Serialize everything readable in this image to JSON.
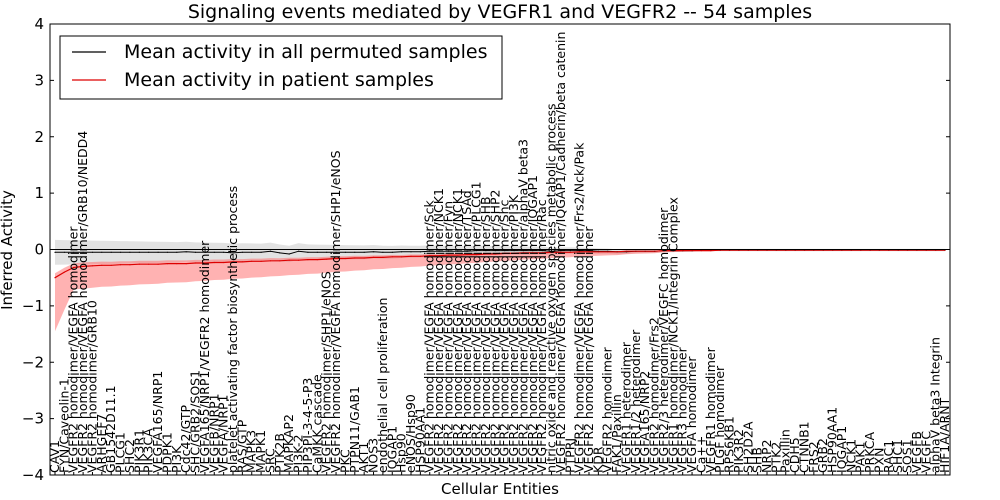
{
  "chart_data": {
    "type": "line",
    "title": "Signaling events mediated by VEGFR1 and VEGFR2 -- 54 samples",
    "xlabel": "Cellular Entities",
    "ylabel": "Inferred Activity",
    "ylim": [
      -4,
      4
    ],
    "yticks": [
      -4,
      -3,
      -2,
      -1,
      0,
      1,
      2,
      3,
      4
    ],
    "legend": {
      "position": "top-left",
      "entries": [
        {
          "label": "Mean activity in all permuted samples",
          "color": "#000000"
        },
        {
          "label": "Mean activity in patient samples",
          "color": "#ff0000"
        }
      ]
    },
    "colors": {
      "permuted_line": "#000000",
      "permuted_band": "#bfbfbf",
      "patient_line": "#dd0000",
      "patient_band": "#ff6666"
    },
    "categories": [
      "CAV1",
      "FYN/Caveolin-1",
      "VEGFR2 homodimer/VEGFA homodimer",
      "VEGFR2 homodimer/VEGFA homodimer/GRB10/NEDD4",
      "VEGFR2 homodimer/GRB10",
      "ARHGEF7",
      "GB1542D11.1",
      "PLCG1",
      "SHC2",
      "PIK3R1",
      "PIK3CA",
      "VEGFA165/NRP1",
      "PDPK1",
      "PI3K",
      "Cdc42/GTP",
      "SHC/GRB2/SOS1",
      "VEGFA165/NRP1/VEGFR2 homodimer",
      "VEGFB/NRP1",
      "VEGFA/NRP1",
      "platelet activating factor biosynthetic process",
      "RAS/GTP",
      "MAPK3",
      "MAPK1",
      "SRC",
      "PTK2B",
      "MAPKAP2",
      "PI3K-2",
      "PIP3PI-3-4-5-P3",
      "CaMKK cascade",
      "VEGFR2 homodimer/SHP1/eNOS",
      "VEGFR2 homodimer/VEGFA homodimer/SHP1/eNOS",
      "PKC",
      "PTPN11/GAB1",
      "AKT1",
      "NOS3",
      "endothelial cell proliferation",
      "IQGAP1",
      "Hsp90",
      "eNOS/Hsp90",
      "HSP90AA1",
      "VEGFR2 homodimer/VEGFA homodimer/Sck",
      "VEGFR2 homodimer/VEGFA homodimer/NCK1",
      "VEGFR2 homodimer/VEGFA homodimer/Fyn",
      "VEGFR2 homodimer/VEGFA homodimer/NCK1",
      "VEGFR2 homodimer/VEGFA homodimer/TSAd",
      "VEGFR2 homodimer/VEGFA homodimer/PLCG1",
      "VEGFR2 homodimer/VEGFA homodimer/SHB",
      "VEGFR2 homodimer/VEGFA homodimer/SHP2",
      "VEGFR2 homodimer/VEGFA homodimer/Shc",
      "VEGFR2 homodimer/VEGFA homodimer/PI3K",
      "VEGFR2 homodimer/VEGFA homodimer/alphaV beta3",
      "VEGFR2 homodimer/VEGFA homodimer/IQGAP1",
      "VEGFR2 homodimer/VEGFA homodimer/Rac",
      "nitric oxide and reactive oxygen species metabolic process",
      "VEGFR2 homodimer/VEGFA homodimer/IQGAP1/Cadherin/beta catenin",
      "PTPRJ",
      "VEGFR2 homodimer/VEGFA homodimer/Frs2/Nck/Pak",
      "VEGFR2 homodimer/VEGFA homodimer",
      "KDR",
      "VEGFR2 homodimer",
      "FAK1/Paxillin",
      "VEGFR1 heterodimer",
      "VEGFR1/2 heterodimer",
      "VEGFA165/NRP2",
      "VEGFR2 homodimer/Frs2",
      "VEGFR2/3 heterodimer/VEGFC homodimer",
      "VEGFR1 homodimer/NCK1/Integrin Complex",
      "VEGFR3 homodimer",
      "VEGFA homodimer",
      "Ca++",
      "VEGFR1 homodimer",
      "PLGF homodimer",
      "RPS6KB1",
      "PIK3R2",
      "SH2D2A",
      "SHB",
      "NRP2",
      "PTK2",
      "Paxillin",
      "CDH5",
      "CTNNB1",
      "FRS2",
      "GRB2",
      "HSP90AA1",
      "IQGAP1",
      "NCK1",
      "PAK1",
      "PRKCA",
      "PXN",
      "RAC1",
      "SHC1",
      "SOS1",
      "VEGFB",
      "VEGFC",
      "alphaV beta3 Integrin",
      "HIF1A/ARNT"
    ],
    "series": [
      {
        "name": "Mean activity in all permuted samples",
        "values": [
          -0.05,
          -0.05,
          -0.05,
          -0.05,
          -0.05,
          -0.05,
          -0.05,
          -0.05,
          -0.05,
          -0.05,
          -0.05,
          -0.05,
          -0.05,
          -0.05,
          -0.04,
          -0.05,
          -0.05,
          -0.05,
          -0.05,
          -0.06,
          -0.05,
          -0.05,
          -0.05,
          -0.03,
          -0.06,
          -0.08,
          -0.03,
          -0.05,
          -0.05,
          -0.05,
          -0.05,
          -0.05,
          -0.05,
          -0.05,
          -0.04,
          -0.05,
          -0.05,
          -0.04,
          -0.04,
          -0.04,
          -0.03,
          -0.03,
          -0.03,
          -0.03,
          -0.03,
          -0.02,
          -0.02,
          -0.02,
          -0.02,
          -0.02,
          -0.02,
          -0.02,
          -0.02,
          -0.03,
          -0.02,
          -0.02,
          -0.02,
          -0.02,
          -0.03,
          -0.03,
          -0.04,
          -0.04,
          -0.03,
          -0.03,
          -0.03,
          -0.02,
          -0.02,
          -0.02,
          -0.02,
          -0.01,
          -0.01,
          -0.01,
          -0.01,
          -0.01,
          -0.01,
          -0.01,
          -0.01,
          -0.01,
          -0.01,
          -0.01,
          -0.01,
          -0.01,
          -0.01,
          -0.01,
          -0.01,
          -0.01,
          -0.01,
          -0.01,
          -0.01,
          -0.01,
          -0.01,
          -0.01,
          -0.01,
          -0.01,
          -0.01,
          -0.01
        ]
      },
      {
        "name": "Mean activity in patient samples",
        "values": [
          -0.5,
          -0.4,
          -0.32,
          -0.3,
          -0.29,
          -0.28,
          -0.28,
          -0.27,
          -0.27,
          -0.26,
          -0.26,
          -0.26,
          -0.25,
          -0.25,
          -0.25,
          -0.24,
          -0.24,
          -0.23,
          -0.23,
          -0.22,
          -0.22,
          -0.21,
          -0.21,
          -0.2,
          -0.2,
          -0.19,
          -0.19,
          -0.18,
          -0.18,
          -0.17,
          -0.16,
          -0.16,
          -0.15,
          -0.15,
          -0.14,
          -0.14,
          -0.13,
          -0.13,
          -0.12,
          -0.12,
          -0.11,
          -0.11,
          -0.1,
          -0.1,
          -0.09,
          -0.09,
          -0.08,
          -0.08,
          -0.07,
          -0.07,
          -0.06,
          -0.06,
          -0.06,
          -0.05,
          -0.05,
          -0.05,
          -0.04,
          -0.04,
          -0.04,
          -0.04,
          -0.04,
          -0.03,
          -0.03,
          -0.03,
          -0.03,
          -0.02,
          -0.02,
          -0.02,
          -0.02,
          -0.02,
          -0.02,
          -0.01,
          -0.01,
          -0.01,
          -0.01,
          -0.01,
          -0.01,
          -0.01,
          -0.01,
          -0.01,
          -0.01,
          -0.01,
          -0.01,
          -0.01,
          -0.01,
          -0.01,
          -0.01,
          -0.01,
          -0.01,
          -0.01,
          -0.01,
          -0.01,
          -0.01,
          -0.01,
          -0.01,
          -0.01
        ]
      }
    ]
  }
}
